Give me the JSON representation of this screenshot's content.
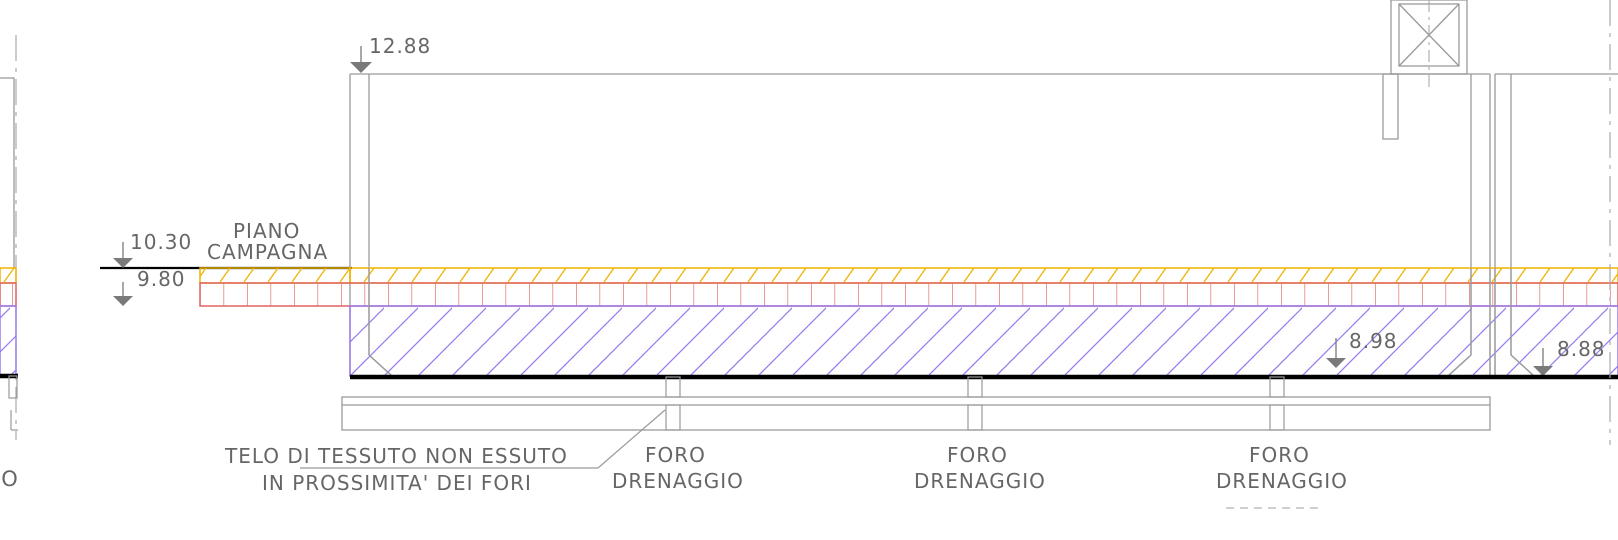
{
  "levels": {
    "top": "12.88",
    "ground_upper": "10.30",
    "ground_lower": "9.80",
    "slab_inner": "8.98",
    "slab_right": "8.88"
  },
  "labels": {
    "piano_line1": "PIANO",
    "piano_line2": "CAMPAGNA",
    "telo_line1": "TELO DI TESSUTO NON ESSUTO",
    "telo_line2": "IN PROSSIMITA' DEI FORI",
    "cut_left": "IO",
    "foro_items": [
      {
        "line1": "FORO",
        "line2": "DRENAGGIO"
      },
      {
        "line1": "FORO",
        "line2": "DRENAGGIO"
      },
      {
        "line1": "FORO",
        "line2": "DRENAGGIO"
      }
    ]
  },
  "colors": {
    "top_layer": "#f0b400",
    "brick_layer": "#e06464",
    "gravel_layer": "#9a7bf0",
    "structure": "#9a9a9a",
    "ground_line": "#000000",
    "text": "#666666",
    "axis": "#aaaaaa"
  }
}
